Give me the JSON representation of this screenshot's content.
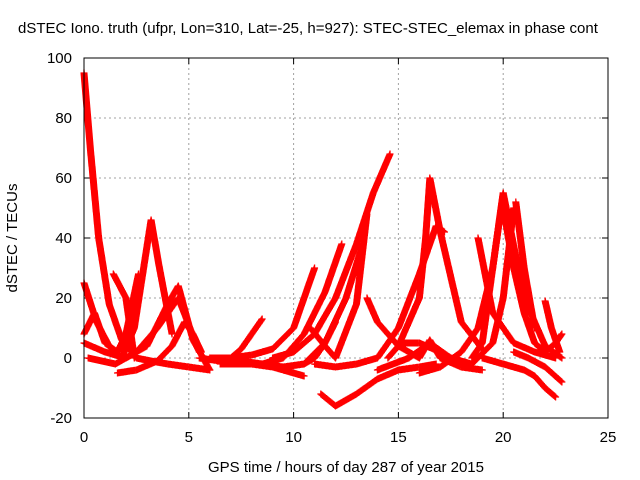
{
  "chart_data": {
    "type": "scatter",
    "title": "dSTEC Iono. truth (ufpr, Lon=310, Lat=-25, h=927): STEC-STEC_elemax in phase cont",
    "xlabel": "GPS time / hours of day 287 of year 2015",
    "ylabel": "dSTEC  / TECUs",
    "xlim": [
      0,
      25
    ],
    "ylim": [
      -20,
      100
    ],
    "xticks": [
      0,
      5,
      10,
      15,
      20,
      25
    ],
    "yticks": [
      -20,
      0,
      20,
      40,
      60,
      80,
      100
    ],
    "grid": true,
    "marker": "+",
    "color": "#ff0000",
    "series": [
      {
        "x": [
          0.0,
          0.3,
          0.7,
          1.2,
          1.8,
          2.5,
          3.2,
          4.0,
          5.0,
          6.0
        ],
        "y": [
          95,
          70,
          40,
          18,
          6,
          0,
          -1,
          -2,
          -3,
          -4
        ]
      },
      {
        "x": [
          0.0,
          0.6,
          1.2,
          1.8,
          2.4,
          2.8,
          3.2,
          3.6,
          4.2
        ],
        "y": [
          25,
          12,
          4,
          0,
          10,
          28,
          46,
          30,
          8
        ]
      },
      {
        "x": [
          0.0,
          0.5,
          1.0,
          1.6,
          2.0,
          2.6
        ],
        "y": [
          8,
          15,
          5,
          2,
          8,
          28
        ]
      },
      {
        "x": [
          0.0,
          1.0,
          2.0,
          3.0,
          4.0,
          4.5,
          5.2,
          6.0
        ],
        "y": [
          5,
          2,
          0,
          4,
          18,
          24,
          6,
          -4
        ]
      },
      {
        "x": [
          0.2,
          1.5,
          2.5,
          3.5,
          4.5,
          5.5
        ],
        "y": [
          0,
          -2,
          2,
          10,
          20,
          2
        ]
      },
      {
        "x": [
          1.6,
          2.5,
          3.5,
          4.2,
          4.8,
          5.2,
          5.6
        ],
        "y": [
          -5,
          -4,
          -1,
          4,
          12,
          8,
          2
        ]
      },
      {
        "x": [
          1.4,
          2.0,
          2.4
        ],
        "y": [
          28,
          20,
          0
        ]
      },
      {
        "x": [
          5.5,
          6.5,
          7.5,
          8.5,
          9.5,
          10.5,
          11.5,
          12.5,
          13.3
        ],
        "y": [
          0,
          -1,
          -1,
          -2,
          -3,
          -2,
          5,
          20,
          38
        ]
      },
      {
        "x": [
          6.0,
          7.0,
          8.0,
          9.0,
          10.0,
          11.0
        ],
        "y": [
          0,
          0,
          1,
          3,
          10,
          30
        ]
      },
      {
        "x": [
          7.0,
          7.5,
          8.0,
          8.5
        ],
        "y": [
          0,
          3,
          8,
          13
        ]
      },
      {
        "x": [
          6.5,
          8.0,
          9.0,
          10.0,
          10.5
        ],
        "y": [
          -2,
          -2,
          -3,
          -5,
          -6
        ]
      },
      {
        "x": [
          8.5,
          9.5,
          10.5,
          11.5,
          12.3
        ],
        "y": [
          -2,
          0,
          8,
          22,
          38
        ]
      },
      {
        "x": [
          9.0,
          10.0,
          11.0,
          12.0,
          13.0,
          13.8,
          14.6
        ],
        "y": [
          0,
          2,
          8,
          20,
          38,
          55,
          68
        ]
      },
      {
        "x": [
          10.5,
          11.0,
          11.5,
          12.0
        ],
        "y": [
          -2,
          0,
          5,
          12
        ]
      },
      {
        "x": [
          11.3,
          12.0,
          13.0,
          14.0,
          15.0,
          16.0,
          16.8
        ],
        "y": [
          -12,
          -16,
          -12,
          -7,
          -4,
          -3,
          -2
        ]
      },
      {
        "x": [
          11.0,
          12.0,
          13.0,
          14.0,
          15.0,
          16.0,
          16.8,
          17.2
        ],
        "y": [
          -2,
          -3,
          -2,
          0,
          10,
          28,
          44,
          42
        ]
      },
      {
        "x": [
          10.8,
          11.5,
          12.0,
          13.0,
          13.5
        ],
        "y": [
          10,
          4,
          0,
          18,
          48
        ]
      },
      {
        "x": [
          13.5,
          14.0,
          15.0,
          16.0,
          16.5,
          17.0,
          18.0,
          19.0
        ],
        "y": [
          20,
          12,
          4,
          0,
          6,
          0,
          -3,
          -4
        ]
      },
      {
        "x": [
          14.5,
          15.0,
          16.0,
          16.3,
          16.5,
          17.0,
          18.0,
          19.0
        ],
        "y": [
          0,
          4,
          20,
          40,
          60,
          42,
          12,
          3
        ]
      },
      {
        "x": [
          14.0,
          15.5,
          16.5,
          17.5,
          18.5,
          19.5,
          20.0,
          20.5
        ],
        "y": [
          -4,
          0,
          5,
          0,
          -2,
          5,
          20,
          50
        ]
      },
      {
        "x": [
          16.0,
          17.0,
          18.0,
          18.8,
          19.5,
          20.0
        ],
        "y": [
          -5,
          -3,
          2,
          10,
          30,
          55
        ]
      },
      {
        "x": [
          18.5,
          19.0,
          19.5,
          20.0,
          21.0,
          22.0,
          22.8
        ],
        "y": [
          0,
          5,
          30,
          55,
          20,
          4,
          0
        ]
      },
      {
        "x": [
          18.8,
          19.5,
          20.5,
          21.5,
          22.5
        ],
        "y": [
          40,
          15,
          5,
          2,
          0
        ]
      },
      {
        "x": [
          20.0,
          20.5,
          21.0,
          21.5,
          22.0,
          22.5,
          22.8
        ],
        "y": [
          50,
          30,
          15,
          5,
          2,
          5,
          8
        ]
      },
      {
        "x": [
          19.0,
          20.0,
          21.0,
          21.5,
          22.0,
          22.5
        ],
        "y": [
          0,
          -2,
          -4,
          -6,
          -10,
          -13
        ]
      },
      {
        "x": [
          20.5,
          21.2,
          22.0,
          22.8
        ],
        "y": [
          2,
          0,
          -3,
          -8
        ]
      },
      {
        "x": [
          22.0,
          22.3,
          22.7
        ],
        "y": [
          19,
          10,
          2
        ]
      },
      {
        "x": [
          20.6,
          21.0,
          21.5
        ],
        "y": [
          52,
          30,
          10
        ]
      },
      {
        "x": [
          15.0,
          16.0,
          17.0,
          18.0
        ],
        "y": [
          5,
          5,
          2,
          -2
        ]
      }
    ]
  }
}
